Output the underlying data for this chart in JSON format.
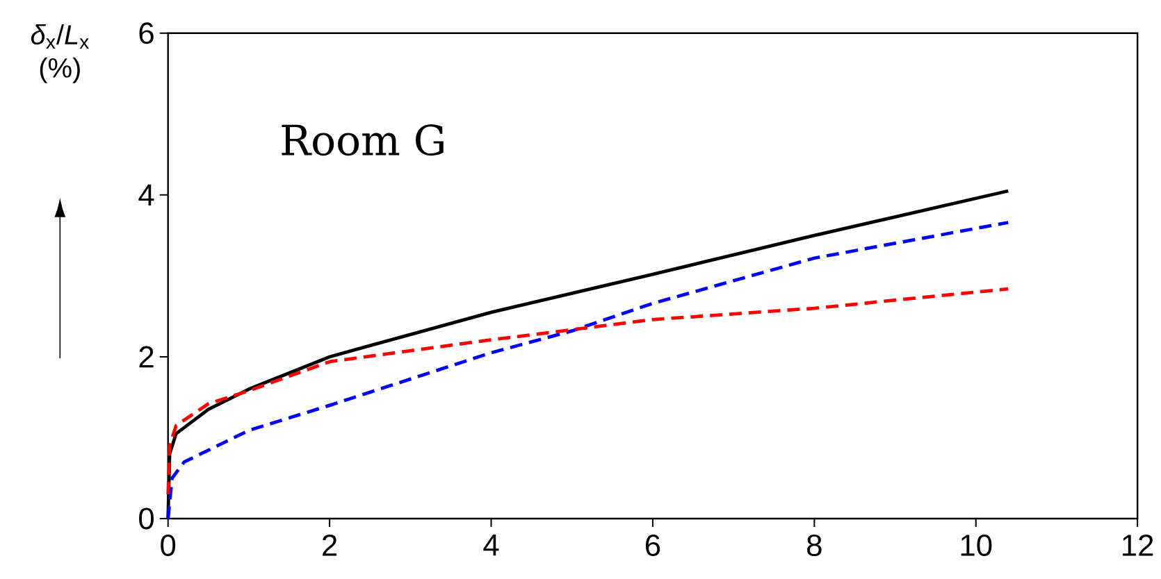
{
  "chart_data": {
    "type": "line",
    "ylabel": "*δ*$_{x}$/*L*$_{x}$ (%)",
    "annotations": [
      "Room G"
    ],
    "xlim": [
      0,
      12
    ],
    "ylim": [
      0,
      6
    ],
    "xticks": [
      0,
      2,
      4,
      6,
      8,
      10,
      12
    ],
    "yticks": [
      0,
      2,
      4,
      6
    ],
    "marker": "none",
    "series": [
      {
        "color": "#000000",
        "line_style": "solid",
        "x": [
          0,
          0.02,
          0.1,
          0.5,
          1,
          2,
          4,
          6,
          8,
          10.4
        ],
        "values": [
          0,
          0.8,
          1.05,
          1.35,
          1.6,
          2.0,
          2.55,
          3.02,
          3.5,
          4.05
        ]
      },
      {
        "color": "#0000ff",
        "line_style": "dashed",
        "x": [
          0,
          0.05,
          0.2,
          1,
          2,
          4,
          5,
          6,
          8,
          10.4
        ],
        "values": [
          0,
          0.5,
          0.7,
          1.09,
          1.4,
          2.05,
          2.32,
          2.66,
          3.22,
          3.66
        ]
      },
      {
        "color": "#ff0000",
        "line_style": "dashed",
        "x": [
          0,
          0.02,
          0.1,
          0.5,
          1,
          2,
          4,
          6,
          8,
          10.4
        ],
        "values": [
          0.3,
          0.9,
          1.15,
          1.42,
          1.58,
          1.94,
          2.21,
          2.46,
          2.6,
          2.84
        ]
      }
    ]
  }
}
